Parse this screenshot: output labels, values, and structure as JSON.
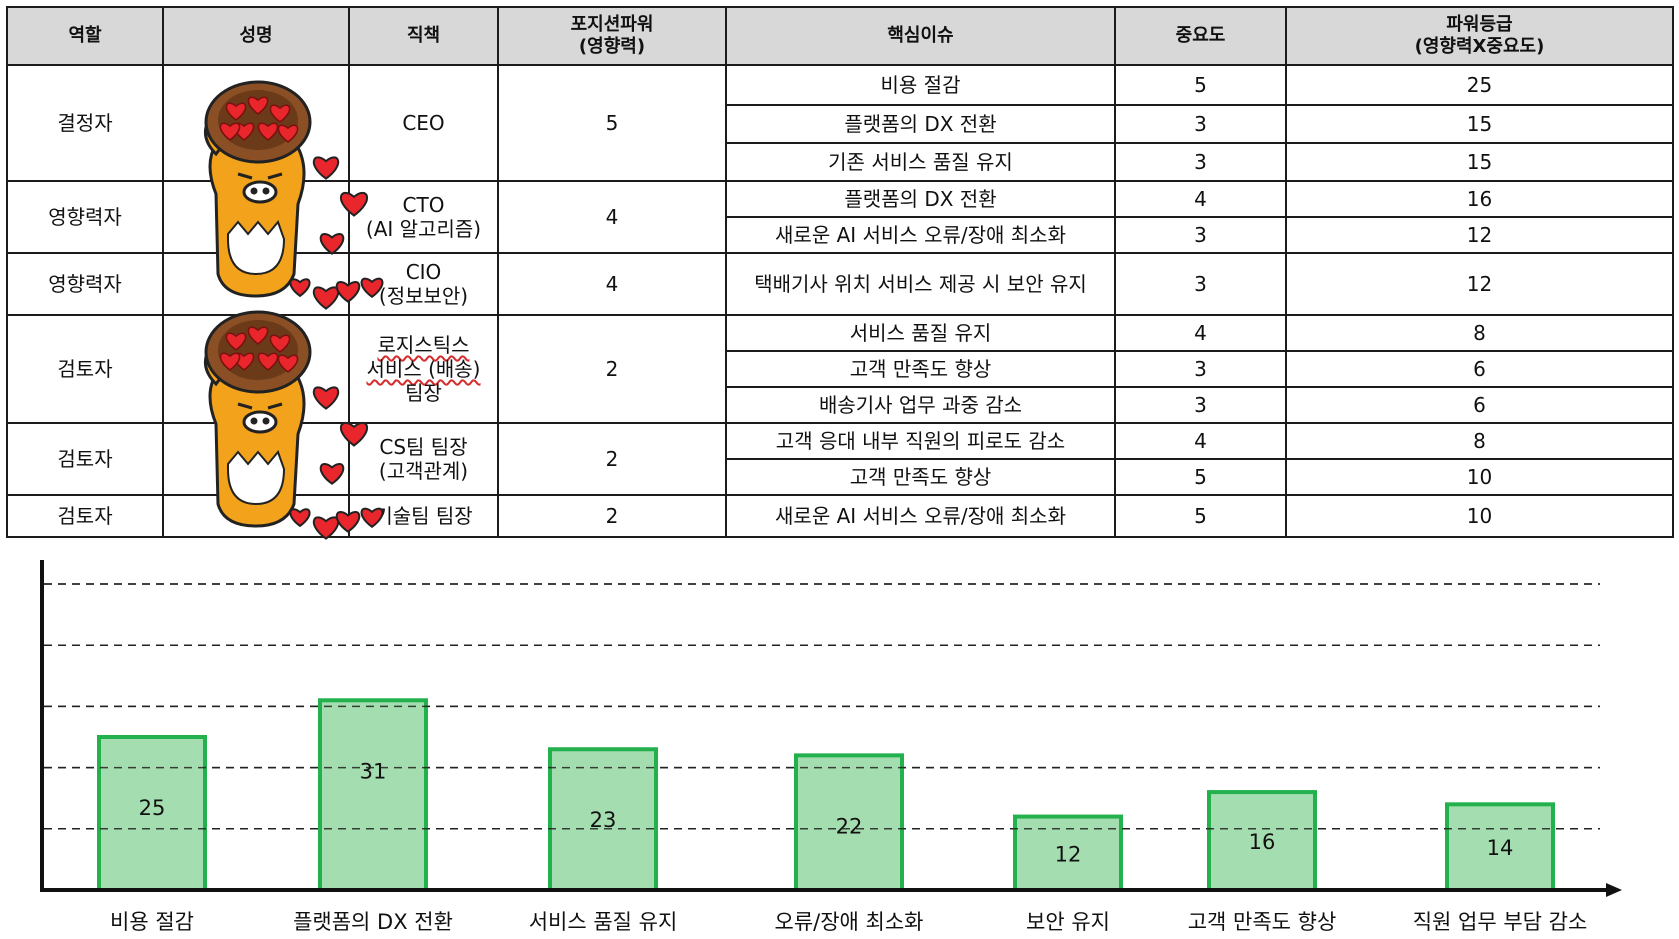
{
  "table": {
    "headers": {
      "role": "역할",
      "name": "성명",
      "position": "직책",
      "power_l1": "포지션파워",
      "power_l2": "(영향력)",
      "issue": "핵심이슈",
      "importance": "중요도",
      "grade_l1": "파워등급",
      "grade_l2": "(영향력X중요도)"
    },
    "groups": [
      {
        "role": "결정자",
        "position": [
          "CEO"
        ],
        "power": "5",
        "issues": [
          {
            "issue": "비용 절감",
            "importance": "5",
            "grade": "25"
          },
          {
            "issue": "플랫폼의 DX 전환",
            "importance": "3",
            "grade": "15"
          },
          {
            "issue": "기존 서비스 품질 유지",
            "importance": "3",
            "grade": "15"
          }
        ]
      },
      {
        "role": "영향력자",
        "position": [
          "CTO",
          "(AI 알고리즘)"
        ],
        "power": "4",
        "issues": [
          {
            "issue": "플랫폼의 DX 전환",
            "importance": "4",
            "grade": "16"
          },
          {
            "issue": "새로운 AI 서비스 오류/장애 최소화",
            "importance": "3",
            "grade": "12"
          }
        ]
      },
      {
        "role": "영향력자",
        "position": [
          "CIO",
          "(정보보안)"
        ],
        "power": "4",
        "issues": [
          {
            "issue": "택배기사 위치 서비스 제공 시 보안 유지",
            "importance": "3",
            "grade": "12"
          }
        ]
      },
      {
        "role": "검토자",
        "position": [
          "로지스틱스",
          "서비스 (배송)",
          "팀장"
        ],
        "power": "2",
        "issues": [
          {
            "issue": "서비스 품질 유지",
            "importance": "4",
            "grade": "8"
          },
          {
            "issue": "고객 만족도 향상",
            "importance": "3",
            "grade": "6"
          },
          {
            "issue": "배송기사 업무 과중 감소",
            "importance": "3",
            "grade": "6"
          }
        ]
      },
      {
        "role": "검토자",
        "position": [
          "CS팀 팀장",
          "(고객관계)"
        ],
        "power": "2",
        "issues": [
          {
            "issue": "고객 응대 내부 직원의 피로도 감소",
            "importance": "4",
            "grade": "8"
          },
          {
            "issue": "고객 만족도 향상",
            "importance": "5",
            "grade": "10"
          }
        ]
      },
      {
        "role": "검토자",
        "position": [
          "기술팀 팀장"
        ],
        "power": "2",
        "issues": [
          {
            "issue": "새로운 AI 서비스 오류/장애 최소화",
            "importance": "5",
            "grade": "10"
          }
        ]
      }
    ]
  },
  "illustrations": [
    {
      "icon": "ryan-character-with-hearts-icon"
    },
    {
      "icon": "ryan-character-with-hearts-icon"
    }
  ],
  "colors": {
    "header_bg": "#d8d8d8",
    "bar_fill": "#a4ddb0",
    "bar_stroke": "#22b14c",
    "ryan_body": "#f2a31b",
    "heart": "#e8262b"
  },
  "chart_data": {
    "type": "bar",
    "title": "",
    "xlabel": "",
    "ylabel": "",
    "categories": [
      "비용 절감",
      "플랫폼의 DX 전환",
      "서비스 품질 유지",
      "오류/장애 최소화",
      "보안 유지",
      "고객 만족도 향상",
      "직원 업무 부담 감소"
    ],
    "values": [
      25,
      31,
      23,
      22,
      12,
      16,
      14
    ],
    "ylim": [
      0,
      50
    ],
    "grid": true,
    "legend": "none",
    "data_labels": true
  }
}
